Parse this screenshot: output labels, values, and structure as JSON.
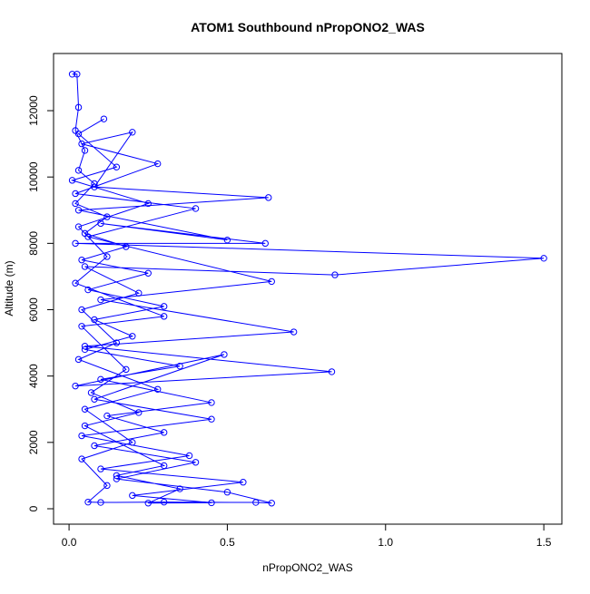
{
  "chart_data": {
    "type": "line",
    "title": "ATOM1 Southbound nPropONO2_WAS",
    "xlabel": "nPropONO2_WAS",
    "ylabel": "Altitude (m)",
    "color": "#0000ff",
    "marker": "open-circle",
    "xlim": [
      -0.049,
      1.557
    ],
    "ylim": [
      -465,
      13723
    ],
    "xticks": [
      {
        "value": 0,
        "label": "0.0"
      },
      {
        "value": 0.5,
        "label": "0.5"
      },
      {
        "value": 1,
        "label": "1.0"
      },
      {
        "value": 1.5,
        "label": "1.5"
      }
    ],
    "yticks": [
      0,
      2000,
      4000,
      6000,
      8000,
      10000,
      12000
    ],
    "x": [
      0.01,
      0.025,
      0.03,
      0.02,
      0.05,
      0.03,
      0.08,
      0.02,
      0.12,
      0.05,
      0.18,
      0.04,
      0.25,
      0.06,
      0.3,
      0.08,
      0.2,
      0.05,
      0.35,
      0.1,
      0.45,
      0.12,
      0.3,
      0.08,
      0.4,
      0.15,
      0.5,
      0.64,
      0.59,
      0.3,
      0.1,
      0.06,
      0.12,
      0.04,
      0.2,
      0.05,
      0.28,
      0.03,
      0.15,
      0.04,
      0.22,
      0.05,
      0.84,
      1.5,
      0.02,
      0.62,
      0.1,
      0.5,
      0.03,
      0.63,
      0.08,
      0.2,
      0.04,
      0.28,
      0.02,
      0.4,
      0.06,
      0.64,
      0.1,
      0.71,
      0.05,
      0.83,
      0.02,
      0.49,
      0.08,
      0.45,
      0.04,
      0.38,
      0.1,
      0.55,
      0.2,
      0.45,
      0.25,
      0.35,
      0.15,
      0.3,
      0.05,
      0.22,
      0.07,
      0.18,
      0.04,
      0.3,
      0.02,
      0.12,
      0.03,
      0.25,
      0.01,
      0.15,
      0.03,
      0.11
    ],
    "values": [
      13100,
      13100,
      12100,
      11400,
      10800,
      10200,
      9800,
      9200,
      8800,
      8300,
      7900,
      7500,
      7100,
      6600,
      6100,
      5700,
      5200,
      4800,
      4300,
      3900,
      3200,
      2800,
      2300,
      1900,
      1400,
      900,
      500,
      170,
      190,
      200,
      190,
      200,
      700,
      1500,
      2000,
      3000,
      3600,
      4500,
      5000,
      6000,
      6500,
      7300,
      7050,
      7550,
      8000,
      8000,
      8600,
      8100,
      9000,
      9380,
      9700,
      11350,
      11000,
      10400,
      9500,
      9050,
      8200,
      6850,
      6300,
      5330,
      4900,
      4130,
      3700,
      4650,
      3300,
      2700,
      2200,
      1600,
      1200,
      800,
      400,
      180,
      170,
      600,
      1000,
      1300,
      2500,
      2900,
      3500,
      4200,
      5500,
      5800,
      6800,
      7600,
      8500,
      9200,
      9900,
      10300,
      11300,
      11750
    ]
  }
}
